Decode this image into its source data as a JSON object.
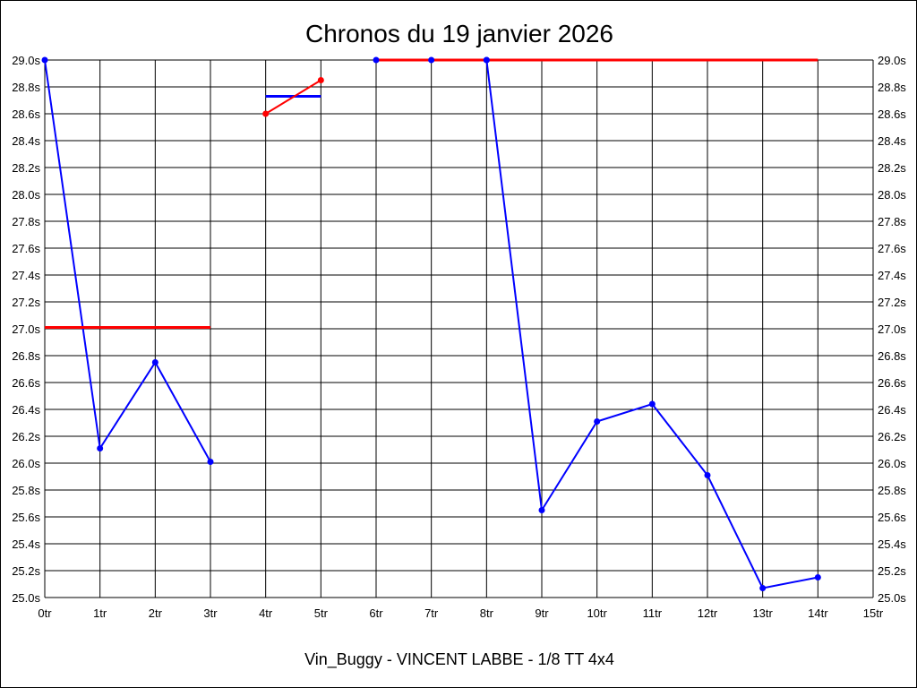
{
  "chart_data": {
    "type": "line",
    "title": "Chronos du 19 janvier 2026",
    "footer": "Vin_Buggy - VINCENT LABBE - 1/8 TT 4x4",
    "xlim": [
      0,
      15
    ],
    "ylim": [
      25.0,
      29.0
    ],
    "x_ticks": [
      "0tr",
      "1tr",
      "2tr",
      "3tr",
      "4tr",
      "5tr",
      "6tr",
      "7tr",
      "8tr",
      "9tr",
      "10tr",
      "11tr",
      "12tr",
      "13tr",
      "14tr",
      "15tr"
    ],
    "y_ticks": [
      "25.0s",
      "25.2s",
      "25.4s",
      "25.6s",
      "25.8s",
      "26.0s",
      "26.2s",
      "26.4s",
      "26.6s",
      "26.8s",
      "27.0s",
      "27.2s",
      "27.4s",
      "27.6s",
      "27.8s",
      "28.0s",
      "28.2s",
      "28.4s",
      "28.6s",
      "28.8s",
      "29.0s"
    ],
    "grid": true,
    "y_axis_both_sides": true,
    "series": [
      {
        "color": "#0000ff",
        "x": [
          0,
          1,
          2,
          3
        ],
        "y": [
          29.0,
          26.11,
          26.75,
          26.01
        ]
      },
      {
        "color": "#ff0000",
        "x": [
          0,
          3
        ],
        "y": [
          27.01,
          27.01
        ],
        "markers": false
      },
      {
        "color": "#0000ff",
        "x": [
          4,
          5
        ],
        "y": [
          28.73,
          28.73
        ],
        "markers": false
      },
      {
        "color": "#ff0000",
        "x": [
          4,
          5
        ],
        "y": [
          28.6,
          28.85
        ]
      },
      {
        "color": "#ff0000",
        "x": [
          6,
          14
        ],
        "y": [
          29.0,
          29.0
        ],
        "markers": false
      },
      {
        "color": "#0000ff",
        "x": [
          6,
          7,
          8
        ],
        "y": [
          29.0,
          29.0,
          29.0
        ],
        "line": false
      },
      {
        "color": "#0000ff",
        "x": [
          8,
          9,
          10,
          11,
          12,
          13,
          14
        ],
        "y": [
          29.0,
          25.65,
          26.31,
          26.44,
          25.91,
          25.07,
          25.15
        ]
      }
    ]
  }
}
